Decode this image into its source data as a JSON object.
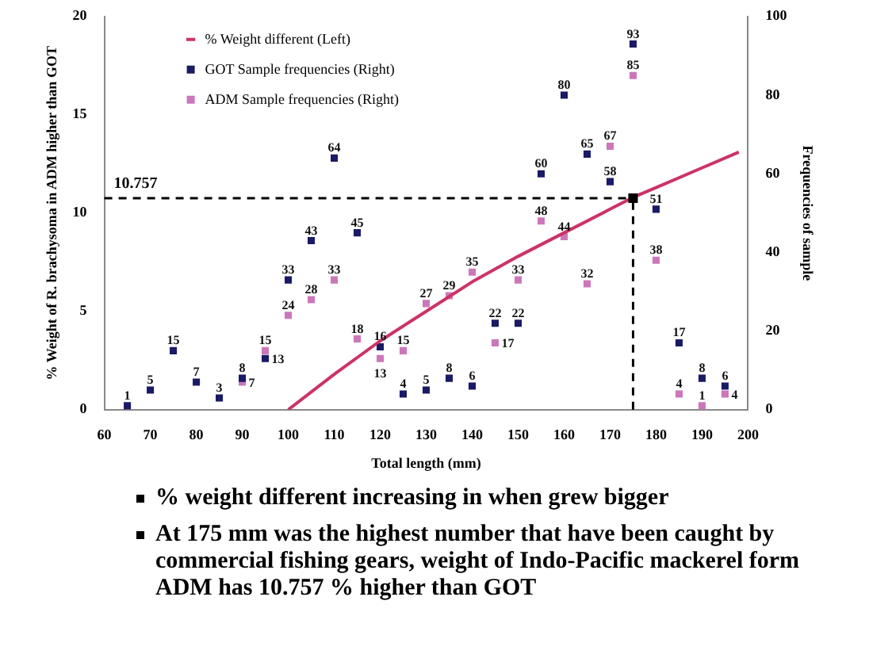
{
  "chart_data": {
    "type": "scatter",
    "xlabel": "Total length (mm)",
    "ylabel": "% Weight of R. brachysoma in ADM higher than GOT",
    "y2label": "Frequencies of sample",
    "xlim": [
      60,
      200
    ],
    "xticks": [
      60,
      70,
      80,
      90,
      100,
      110,
      120,
      130,
      140,
      150,
      160,
      170,
      180,
      190,
      200
    ],
    "ylim": [
      0,
      20
    ],
    "yticks": [
      0,
      5,
      10,
      15,
      20
    ],
    "y2lim": [
      0,
      100
    ],
    "y2ticks": [
      0,
      20,
      40,
      60,
      80,
      100
    ],
    "grid": false,
    "legend": "top left",
    "series": [
      {
        "name": "% Weight different (Left)",
        "type": "line",
        "marker": "none",
        "color": "#cc3366",
        "x": [
          100,
          110,
          120,
          130,
          140,
          150,
          160,
          170,
          175,
          180,
          190,
          198
        ],
        "values": [
          0,
          1.8,
          3.5,
          5,
          6.5,
          7.8,
          9,
          10.2,
          10.8,
          11.3,
          12.3,
          13.1
        ]
      },
      {
        "name": "GOT Sample frequencies (Right)",
        "marker": "square",
        "axis": "y2",
        "color": "#1a1a66",
        "x": [
          65,
          70,
          75,
          80,
          85,
          90,
          95,
          100,
          105,
          110,
          115,
          120,
          125,
          130,
          135,
          140,
          145,
          150,
          155,
          160,
          165,
          170,
          175,
          180,
          185,
          190,
          195
        ],
        "values": [
          1,
          5,
          15,
          7,
          3,
          8,
          13,
          33,
          43,
          64,
          45,
          16,
          4,
          5,
          8,
          6,
          22,
          22,
          60,
          80,
          65,
          58,
          93,
          51,
          17,
          8,
          6
        ],
        "value_labels": [
          "1",
          "5",
          "15",
          "7",
          "3",
          "8",
          "13",
          "33",
          "43",
          "64",
          "45",
          "16",
          "4",
          "5",
          "8",
          "6",
          "22",
          "22",
          "60",
          "80",
          "65",
          "58",
          "93",
          "51",
          "17",
          "8",
          "6"
        ]
      },
      {
        "name": "ADM Sample frequencies (Right)",
        "marker": "square",
        "axis": "y2",
        "color": "#cc77bb",
        "x": [
          90,
          95,
          100,
          105,
          110,
          115,
          120,
          125,
          130,
          135,
          140,
          145,
          150,
          155,
          160,
          165,
          170,
          175,
          180,
          185,
          190,
          195
        ],
        "values": [
          7,
          15,
          24,
          28,
          33,
          18,
          13,
          15,
          27,
          29,
          35,
          17,
          33,
          48,
          44,
          32,
          67,
          85,
          38,
          4,
          1,
          4
        ],
        "value_labels": [
          "7",
          "15",
          "24",
          "28",
          "33",
          "18",
          "13",
          "15",
          "27",
          "29",
          "35",
          "17",
          "33",
          "48",
          "44",
          "32",
          "67",
          "85",
          "38",
          "4",
          "1",
          "4"
        ]
      }
    ],
    "ref_lines": [
      {
        "axis": "y",
        "value": 10.757,
        "label": "10.757",
        "line_style": "dashed",
        "color": "#000000"
      },
      {
        "axis": "x",
        "value": 175,
        "line_style": "dashed",
        "color": "#000000"
      }
    ],
    "annotations": [
      "% weight different increasing in when grew bigger",
      "At 175 mm was the highest number that have been caught by commercial fishing gears, weight of Indo-Pacific mackerel form ADM has 10.757 % higher than GOT"
    ]
  }
}
